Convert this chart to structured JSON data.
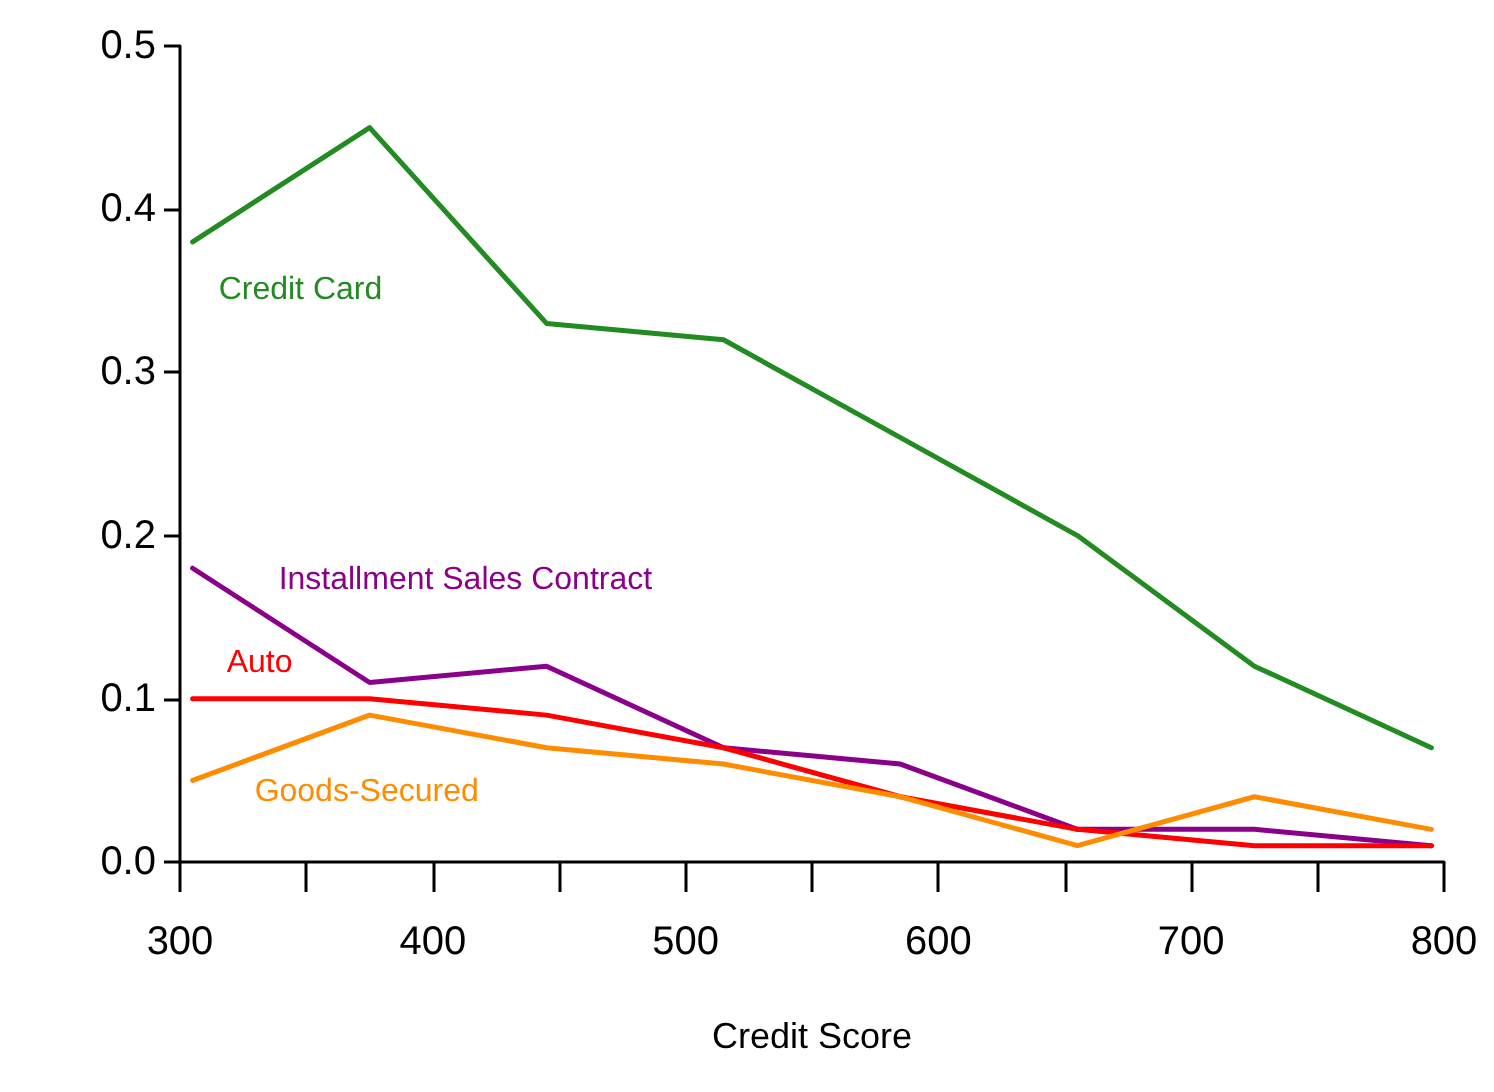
{
  "chart_data": {
    "type": "line",
    "xlabel": "Credit Score",
    "x": [
      305,
      375,
      445,
      515,
      585,
      655,
      725,
      795
    ],
    "series": [
      {
        "name": "Credit Card",
        "color": "#228b22",
        "values": [
          0.38,
          0.45,
          0.33,
          0.32,
          0.26,
          0.2,
          0.12,
          0.07
        ]
      },
      {
        "name": "Installment Sales Contract",
        "color": "#8b008b",
        "values": [
          0.18,
          0.11,
          0.12,
          0.07,
          0.06,
          0.02,
          0.02,
          0.01
        ]
      },
      {
        "name": "Auto",
        "color": "#ff0000",
        "values": [
          0.1,
          0.1,
          0.09,
          0.07,
          0.04,
          0.02,
          0.01,
          0.01
        ]
      },
      {
        "name": "Goods-Secured",
        "color": "#ff8c00",
        "values": [
          0.05,
          0.09,
          0.07,
          0.06,
          0.04,
          0.01,
          0.04,
          0.02
        ]
      }
    ],
    "xlim": [
      300,
      800
    ],
    "xticks": [
      300,
      {
        "value": 350,
        "label": null
      },
      400,
      {
        "value": 450,
        "label": null
      },
      500,
      {
        "value": 550,
        "label": null
      },
      600,
      {
        "value": 650,
        "label": null
      },
      700,
      {
        "value": 750,
        "label": null
      },
      800
    ],
    "ylim": [
      0,
      0.5
    ],
    "yticks": [
      {
        "value": 0,
        "label": "0.0"
      },
      {
        "value": 0.1,
        "label": "0.1"
      },
      {
        "value": 0.2,
        "label": "0.2"
      },
      {
        "value": 0.3,
        "label": "0.3"
      },
      {
        "value": 0.4,
        "label": "0.4"
      },
      {
        "value": 0.5,
        "label": "0.5"
      }
    ],
    "grid": false,
    "legend": false,
    "line_style": "solid"
  }
}
